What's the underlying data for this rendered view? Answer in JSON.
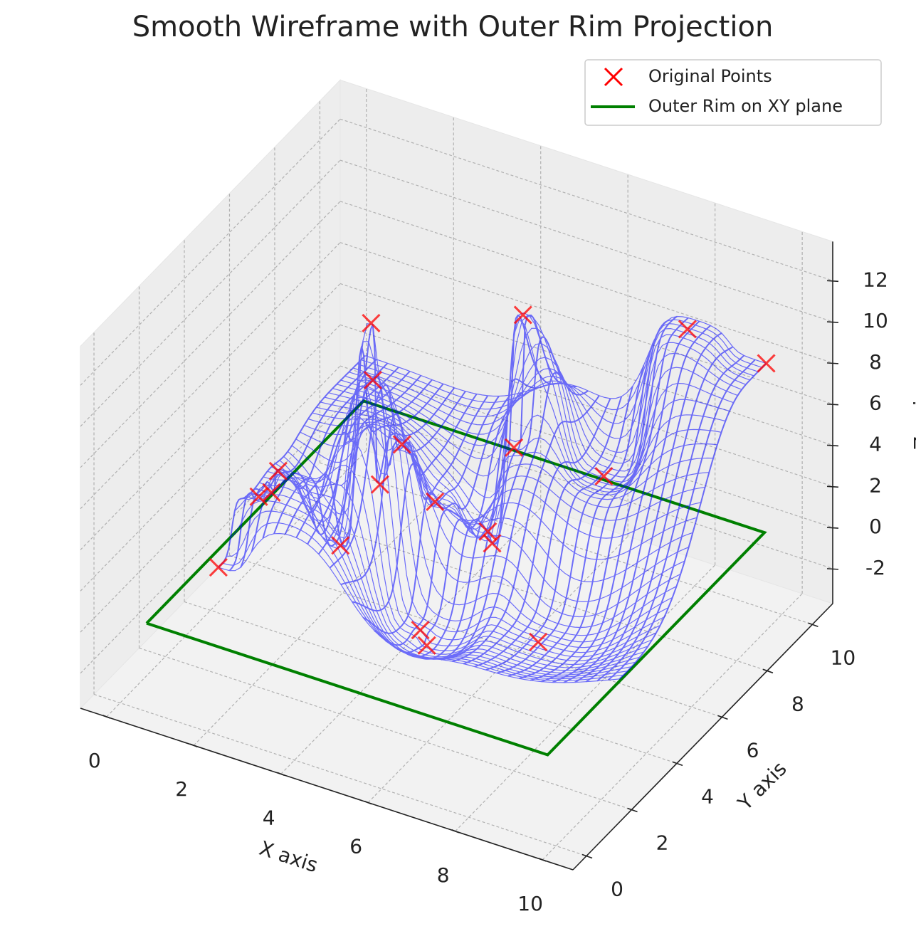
{
  "chart_data": {
    "type": "scatter3d",
    "title": "Smooth Wireframe with Outer Rim Projection",
    "xlabel": "X axis",
    "ylabel": "Y axis",
    "zlabel": "Z axis",
    "xlim": [
      -0.6,
      10.7
    ],
    "ylim": [
      -0.6,
      10.9
    ],
    "zlim": [
      -3.7,
      13.9
    ],
    "xticks": [
      0,
      2,
      4,
      6,
      8,
      10
    ],
    "yticks": [
      0,
      2,
      4,
      6,
      8,
      10
    ],
    "zticks": [
      -2,
      0,
      2,
      4,
      6,
      8,
      10,
      12
    ],
    "grid": true,
    "legend": "upper right",
    "surface_color": "blue",
    "series": [
      {
        "name": "Original Points",
        "color": "red",
        "marker": "x",
        "x": [
          0.7,
          1.4,
          1.5,
          0.9,
          2.1,
          2.8,
          3.2,
          3.7,
          2.7,
          3.0,
          5.2,
          8.3,
          9.9,
          5.2,
          6.9,
          4.6,
          4.7,
          4.4,
          4.6,
          7.0
        ],
        "y": [
          3.0,
          4.0,
          4.1,
          4.4,
          5.7,
          6.1,
          6.3,
          6.8,
          5.9,
          5.4,
          7.8,
          9.1,
          9.5,
          7.4,
          8.1,
          7.4,
          7.4,
          4.8,
          4.7,
          5.0
        ],
        "z": [
          0,
          3,
          4,
          2,
          -1,
          2,
          4,
          1,
          10,
          8,
          10,
          10,
          9,
          4,
          3,
          -0.5,
          -1,
          -2.5,
          -3,
          -1.5
        ]
      },
      {
        "name": "Outer Rim on XY plane",
        "color": "green",
        "marker": "line",
        "x": [
          0.4,
          9.6,
          9.6,
          0.4,
          0.4
        ],
        "y": [
          0.4,
          0.4,
          10,
          10,
          0.4
        ],
        "z": [
          0,
          0,
          0,
          0,
          0
        ]
      }
    ]
  }
}
